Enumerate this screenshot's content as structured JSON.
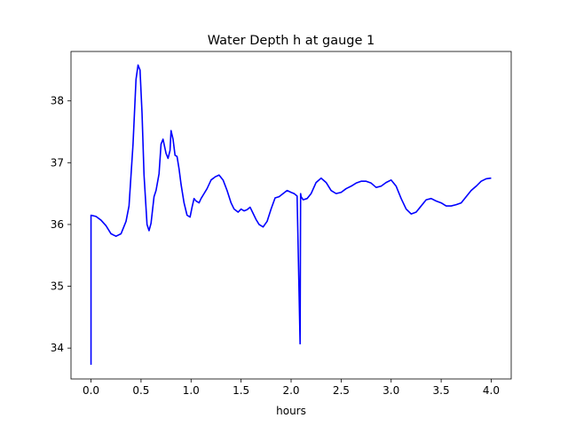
{
  "chart_data": {
    "type": "line",
    "title": "Water Depth h at gauge 1",
    "xlabel": "hours",
    "ylabel": "",
    "xlim": [
      -0.2,
      4.2
    ],
    "ylim": [
      33.5,
      38.8
    ],
    "xticks": [
      0.0,
      0.5,
      1.0,
      1.5,
      2.0,
      2.5,
      3.0,
      3.5,
      4.0
    ],
    "xtick_labels": [
      "0.0",
      "0.5",
      "1.0",
      "1.5",
      "2.0",
      "2.5",
      "3.0",
      "3.5",
      "4.0"
    ],
    "yticks": [
      34,
      35,
      36,
      37,
      38
    ],
    "ytick_labels": [
      "34",
      "35",
      "36",
      "37",
      "38"
    ],
    "grid": false,
    "series": [
      {
        "color": "#0000ff",
        "x": [
          0.0,
          0.0,
          0.05,
          0.1,
          0.15,
          0.2,
          0.25,
          0.3,
          0.35,
          0.38,
          0.42,
          0.45,
          0.47,
          0.49,
          0.51,
          0.53,
          0.56,
          0.58,
          0.6,
          0.63,
          0.65,
          0.68,
          0.7,
          0.72,
          0.75,
          0.77,
          0.79,
          0.8,
          0.82,
          0.84,
          0.86,
          0.88,
          0.9,
          0.93,
          0.96,
          0.99,
          1.01,
          1.03,
          1.05,
          1.08,
          1.1,
          1.13,
          1.16,
          1.2,
          1.24,
          1.28,
          1.32,
          1.36,
          1.4,
          1.43,
          1.47,
          1.5,
          1.53,
          1.56,
          1.59,
          1.62,
          1.65,
          1.68,
          1.72,
          1.76,
          1.8,
          1.84,
          1.88,
          1.92,
          1.96,
          2.0,
          2.03,
          2.06,
          2.09,
          2.095,
          2.1,
          2.12,
          2.16,
          2.2,
          2.25,
          2.3,
          2.35,
          2.4,
          2.45,
          2.5,
          2.55,
          2.6,
          2.65,
          2.7,
          2.75,
          2.8,
          2.85,
          2.9,
          2.95,
          3.0,
          3.05,
          3.1,
          3.15,
          3.2,
          3.25,
          3.3,
          3.35,
          3.4,
          3.45,
          3.5,
          3.55,
          3.6,
          3.65,
          3.7,
          3.75,
          3.8,
          3.85,
          3.9,
          3.95,
          4.0
        ],
        "y": [
          33.73,
          36.15,
          36.13,
          36.07,
          35.98,
          35.85,
          35.81,
          35.85,
          36.05,
          36.3,
          37.3,
          38.35,
          38.58,
          38.5,
          37.8,
          36.8,
          36.0,
          35.9,
          36.02,
          36.45,
          36.55,
          36.82,
          37.3,
          37.38,
          37.15,
          37.07,
          37.2,
          37.52,
          37.38,
          37.12,
          37.1,
          36.9,
          36.65,
          36.35,
          36.15,
          36.12,
          36.28,
          36.42,
          36.38,
          36.35,
          36.42,
          36.5,
          36.58,
          36.72,
          36.77,
          36.8,
          36.72,
          36.55,
          36.35,
          36.25,
          36.2,
          36.25,
          36.22,
          36.24,
          36.28,
          36.18,
          36.08,
          36.0,
          35.96,
          36.05,
          36.25,
          36.43,
          36.45,
          36.5,
          36.55,
          36.52,
          36.5,
          36.46,
          34.07,
          36.5,
          36.45,
          36.4,
          36.42,
          36.5,
          36.68,
          36.75,
          36.68,
          36.55,
          36.5,
          36.52,
          36.58,
          36.62,
          36.67,
          36.7,
          36.7,
          36.67,
          36.6,
          36.62,
          36.68,
          36.72,
          36.62,
          36.42,
          36.25,
          36.17,
          36.2,
          36.3,
          36.4,
          36.42,
          36.38,
          36.35,
          36.3,
          36.3,
          36.32,
          36.35,
          36.45,
          36.55,
          36.62,
          36.7,
          36.74,
          36.75
        ]
      }
    ]
  }
}
